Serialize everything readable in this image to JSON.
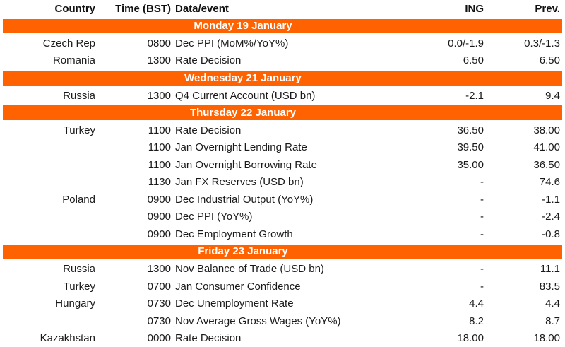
{
  "colors": {
    "accent_orange": "#FF6200",
    "banner_text": "#FFFFFF",
    "body_text": "#1A1A1A"
  },
  "header": {
    "columns": [
      "Country",
      "Time (BST)",
      "Data/event",
      "ING",
      "Prev."
    ]
  },
  "sections": [
    {
      "title": "Monday 19 January",
      "rows": [
        {
          "country": "Czech Rep",
          "time": "0800",
          "event": "Dec PPI (MoM%/YoY%)",
          "ing": "0.0/-1.9",
          "prev": "0.3/-1.3"
        },
        {
          "country": "Romania",
          "time": "1300",
          "event": "Rate Decision",
          "ing": "6.50",
          "prev": "6.50"
        }
      ]
    },
    {
      "title": "Wednesday 21 January",
      "rows": [
        {
          "country": "Russia",
          "time": "1300",
          "event": "Q4 Current Account (USD bn)",
          "ing": "-2.1",
          "prev": "9.4"
        }
      ]
    },
    {
      "title": "Thursday 22 January",
      "rows": [
        {
          "country": "Turkey",
          "time": "1100",
          "event": "Rate Decision",
          "ing": "36.50",
          "prev": "38.00"
        },
        {
          "country": "",
          "time": "1100",
          "event": "Jan Overnight Lending Rate",
          "ing": "39.50",
          "prev": "41.00"
        },
        {
          "country": "",
          "time": "1100",
          "event": "Jan Overnight Borrowing Rate",
          "ing": "35.00",
          "prev": "36.50"
        },
        {
          "country": "",
          "time": "1130",
          "event": "Jan FX Reserves (USD bn)",
          "ing": "-",
          "prev": "74.6"
        },
        {
          "country": "Poland",
          "time": "0900",
          "event": "Dec Industrial Output (YoY%)",
          "ing": "-",
          "prev": "-1.1"
        },
        {
          "country": "",
          "time": "0900",
          "event": "Dec PPI (YoY%)",
          "ing": "-",
          "prev": "-2.4"
        },
        {
          "country": "",
          "time": "0900",
          "event": "Dec Employment Growth",
          "ing": "-",
          "prev": "-0.8"
        }
      ]
    },
    {
      "title": "Friday 23 January",
      "rows": [
        {
          "country": "Russia",
          "time": "1300",
          "event": "Nov Balance of Trade (USD bn)",
          "ing": "-",
          "prev": "11.1"
        },
        {
          "country": "Turkey",
          "time": "0700",
          "event": "Jan Consumer Confidence",
          "ing": "-",
          "prev": "83.5"
        },
        {
          "country": "Hungary",
          "time": "0730",
          "event": "Dec Unemployment Rate",
          "ing": "4.4",
          "prev": "4.4"
        },
        {
          "country": "",
          "time": "0730",
          "event": "Nov Average Gross Wages (YoY%)",
          "ing": "8.2",
          "prev": "8.7"
        },
        {
          "country": "Kazakhstan",
          "time": "0000",
          "event": "Rate Decision",
          "ing": "18.00",
          "prev": "18.00"
        }
      ]
    }
  ]
}
